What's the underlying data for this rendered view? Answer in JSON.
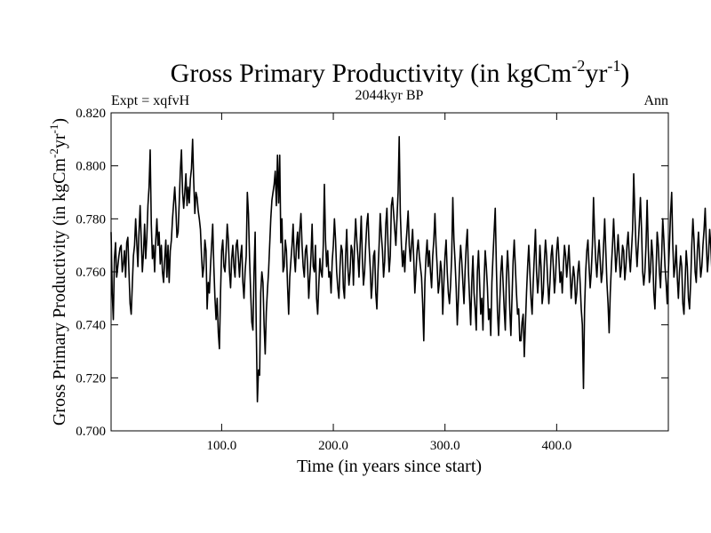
{
  "chart_data": {
    "type": "line",
    "title_main": "Gross Primary Productivity (in kgCm",
    "title_sup1": "-2",
    "title_mid": "yr",
    "title_sup2": "-1",
    "title_end": ")",
    "subtitle_left": "Expt = xqfvH",
    "subtitle_center": "2044kyr BP",
    "subtitle_right": "Ann",
    "xlabel": "Time (in years since start)",
    "ylabel_main": "Gross Primary Productivity (in kgCm",
    "ylabel_sup1": "-2",
    "ylabel_mid": "yr",
    "ylabel_sup2": "-1",
    "ylabel_end": ")",
    "xlim": [
      1,
      500
    ],
    "ylim": [
      0.7,
      0.82
    ],
    "xticks": [
      100,
      200,
      300,
      400
    ],
    "xtick_labels": [
      "100.0",
      "200.0",
      "300.0",
      "400.0"
    ],
    "yticks": [
      0.7,
      0.72,
      0.74,
      0.76,
      0.78,
      0.8,
      0.82
    ],
    "ytick_labels": [
      "0.700",
      "0.720",
      "0.740",
      "0.760",
      "0.780",
      "0.800",
      "0.820"
    ],
    "x_start": 1,
    "x_step": 1,
    "series": [
      {
        "name": "Gross Primary Productivity",
        "color": "#000000",
        "values": [
          0.775,
          0.752,
          0.742,
          0.765,
          0.771,
          0.758,
          0.762,
          0.766,
          0.769,
          0.77,
          0.76,
          0.763,
          0.768,
          0.758,
          0.771,
          0.773,
          0.76,
          0.748,
          0.744,
          0.755,
          0.766,
          0.77,
          0.78,
          0.771,
          0.762,
          0.775,
          0.785,
          0.772,
          0.76,
          0.767,
          0.778,
          0.765,
          0.773,
          0.785,
          0.792,
          0.806,
          0.778,
          0.765,
          0.77,
          0.76,
          0.772,
          0.78,
          0.77,
          0.775,
          0.763,
          0.77,
          0.76,
          0.756,
          0.765,
          0.772,
          0.758,
          0.77,
          0.756,
          0.768,
          0.772,
          0.78,
          0.786,
          0.792,
          0.784,
          0.773,
          0.775,
          0.786,
          0.798,
          0.806,
          0.79,
          0.784,
          0.79,
          0.797,
          0.785,
          0.792,
          0.786,
          0.795,
          0.799,
          0.81,
          0.794,
          0.782,
          0.79,
          0.788,
          0.783,
          0.78,
          0.776,
          0.766,
          0.758,
          0.762,
          0.772,
          0.768,
          0.746,
          0.756,
          0.752,
          0.762,
          0.77,
          0.778,
          0.762,
          0.75,
          0.742,
          0.75,
          0.737,
          0.731,
          0.752,
          0.768,
          0.772,
          0.762,
          0.76,
          0.768,
          0.778,
          0.772,
          0.76,
          0.754,
          0.765,
          0.77,
          0.762,
          0.758,
          0.77,
          0.772,
          0.765,
          0.758,
          0.766,
          0.77,
          0.756,
          0.75,
          0.76,
          0.766,
          0.79,
          0.782,
          0.765,
          0.752,
          0.741,
          0.738,
          0.76,
          0.775,
          0.738,
          0.711,
          0.723,
          0.721,
          0.752,
          0.76,
          0.756,
          0.74,
          0.729,
          0.745,
          0.753,
          0.76,
          0.77,
          0.78,
          0.787,
          0.79,
          0.793,
          0.798,
          0.785,
          0.804,
          0.786,
          0.804,
          0.771,
          0.78,
          0.76,
          0.762,
          0.772,
          0.768,
          0.755,
          0.744,
          0.758,
          0.764,
          0.77,
          0.778,
          0.766,
          0.76,
          0.77,
          0.775,
          0.765,
          0.776,
          0.782,
          0.77,
          0.762,
          0.758,
          0.768,
          0.77,
          0.762,
          0.75,
          0.758,
          0.766,
          0.778,
          0.762,
          0.76,
          0.77,
          0.75,
          0.744,
          0.755,
          0.765,
          0.76,
          0.758,
          0.77,
          0.793,
          0.772,
          0.762,
          0.768,
          0.758,
          0.76,
          0.752,
          0.764,
          0.77,
          0.78,
          0.772,
          0.76,
          0.754,
          0.75,
          0.762,
          0.77,
          0.768,
          0.754,
          0.75,
          0.766,
          0.776,
          0.762,
          0.755,
          0.76,
          0.77,
          0.768,
          0.755,
          0.77,
          0.78,
          0.772,
          0.766,
          0.758,
          0.77,
          0.781,
          0.765,
          0.755,
          0.76,
          0.77,
          0.778,
          0.782,
          0.77,
          0.762,
          0.75,
          0.756,
          0.766,
          0.768,
          0.752,
          0.746,
          0.76,
          0.77,
          0.782,
          0.774,
          0.768,
          0.758,
          0.764,
          0.778,
          0.784,
          0.77,
          0.76,
          0.766,
          0.785,
          0.788,
          0.782,
          0.776,
          0.77,
          0.78,
          0.79,
          0.811,
          0.782,
          0.77,
          0.762,
          0.768,
          0.76,
          0.77,
          0.776,
          0.783,
          0.77,
          0.764,
          0.77,
          0.776,
          0.765,
          0.752,
          0.76,
          0.768,
          0.772,
          0.766,
          0.762,
          0.758,
          0.748,
          0.734,
          0.756,
          0.766,
          0.772,
          0.762,
          0.768,
          0.76,
          0.754,
          0.766,
          0.772,
          0.782,
          0.77,
          0.762,
          0.752,
          0.756,
          0.764,
          0.76,
          0.744,
          0.756,
          0.766,
          0.772,
          0.76,
          0.752,
          0.748,
          0.755,
          0.766,
          0.788,
          0.772,
          0.764,
          0.754,
          0.74,
          0.75,
          0.762,
          0.77,
          0.764,
          0.756,
          0.748,
          0.76,
          0.77,
          0.776,
          0.76,
          0.75,
          0.74,
          0.756,
          0.766,
          0.752,
          0.746,
          0.738,
          0.76,
          0.768,
          0.756,
          0.744,
          0.75,
          0.738,
          0.756,
          0.768,
          0.762,
          0.754,
          0.742,
          0.746,
          0.736,
          0.756,
          0.766,
          0.775,
          0.784,
          0.762,
          0.745,
          0.736,
          0.748,
          0.76,
          0.766,
          0.756,
          0.746,
          0.738,
          0.758,
          0.768,
          0.76,
          0.746,
          0.736,
          0.75,
          0.764,
          0.772,
          0.762,
          0.752,
          0.744,
          0.746,
          0.734,
          0.734,
          0.741,
          0.744,
          0.728,
          0.74,
          0.752,
          0.762,
          0.77,
          0.76,
          0.75,
          0.744,
          0.756,
          0.766,
          0.776,
          0.76,
          0.752,
          0.758,
          0.77,
          0.762,
          0.748,
          0.752,
          0.764,
          0.772,
          0.766,
          0.756,
          0.748,
          0.756,
          0.766,
          0.77,
          0.762,
          0.752,
          0.758,
          0.768,
          0.773,
          0.765,
          0.756,
          0.76,
          0.752,
          0.762,
          0.77,
          0.766,
          0.758,
          0.764,
          0.77,
          0.76,
          0.75,
          0.756,
          0.762,
          0.758,
          0.748,
          0.752,
          0.76,
          0.764,
          0.756,
          0.746,
          0.74,
          0.716,
          0.746,
          0.76,
          0.768,
          0.772,
          0.762,
          0.754,
          0.76,
          0.77,
          0.788,
          0.774,
          0.764,
          0.758,
          0.766,
          0.772,
          0.764,
          0.756,
          0.76,
          0.77,
          0.78,
          0.768,
          0.756,
          0.748,
          0.737,
          0.752,
          0.762,
          0.77,
          0.78,
          0.77,
          0.76,
          0.766,
          0.774,
          0.766,
          0.758,
          0.762,
          0.77,
          0.768,
          0.757,
          0.762,
          0.77,
          0.775,
          0.766,
          0.76,
          0.768,
          0.776,
          0.797,
          0.782,
          0.77,
          0.762,
          0.77,
          0.778,
          0.788,
          0.776,
          0.76,
          0.755,
          0.76,
          0.77,
          0.787,
          0.77,
          0.756,
          0.76,
          0.772,
          0.766,
          0.752,
          0.746,
          0.76,
          0.775,
          0.77,
          0.76,
          0.754,
          0.766,
          0.78,
          0.772,
          0.762,
          0.756,
          0.748,
          0.76,
          0.77,
          0.782,
          0.79,
          0.77,
          0.758,
          0.762,
          0.77,
          0.758,
          0.75,
          0.76,
          0.766,
          0.762,
          0.748,
          0.744,
          0.756,
          0.768,
          0.762,
          0.75,
          0.746,
          0.756,
          0.77,
          0.78,
          0.772,
          0.76,
          0.756,
          0.768,
          0.775,
          0.766,
          0.758,
          0.762,
          0.77,
          0.776,
          0.784,
          0.771,
          0.76,
          0.766,
          0.776,
          0.77,
          0.76,
          0.752,
          0.746,
          0.758,
          0.768,
          0.775,
          0.764,
          0.756,
          0.76,
          0.766,
          0.77,
          0.76,
          0.748,
          0.752,
          0.766,
          0.776,
          0.772,
          0.76,
          0.755,
          0.76,
          0.768,
          0.778,
          0.79,
          0.772,
          0.766,
          0.762,
          0.776,
          0.782,
          0.77,
          0.76,
          0.756,
          0.765,
          0.772,
          0.762,
          0.75,
          0.742,
          0.756,
          0.766,
          0.76,
          0.752,
          0.74,
          0.748,
          0.76,
          0.77,
          0.762,
          0.752,
          0.76,
          0.77,
          0.766,
          0.756,
          0.748,
          0.762,
          0.772,
          0.78,
          0.79,
          0.772,
          0.764,
          0.758,
          0.77,
          0.78,
          0.776,
          0.77,
          0.762,
          0.77,
          0.778,
          0.786,
          0.778,
          0.77,
          0.76,
          0.756,
          0.762,
          0.77,
          0.76,
          0.752,
          0.756,
          0.766,
          0.772,
          0.768,
          0.76,
          0.752,
          0.76,
          0.77,
          0.778,
          0.766,
          0.758,
          0.766,
          0.776,
          0.77,
          0.762,
          0.758,
          0.766,
          0.774,
          0.782,
          0.77,
          0.76,
          0.752,
          0.762,
          0.77,
          0.776,
          0.768,
          0.758,
          0.748,
          0.756,
          0.766,
          0.76,
          0.75,
          0.756,
          0.766,
          0.772,
          0.764,
          0.756,
          0.748,
          0.718,
          0.73,
          0.742,
          0.756,
          0.752,
          0.746,
          0.75,
          0.766,
          0.775,
          0.762,
          0.752,
          0.762,
          0.77,
          0.782,
          0.77,
          0.756,
          0.766,
          0.778,
          0.783
        ]
      }
    ]
  }
}
